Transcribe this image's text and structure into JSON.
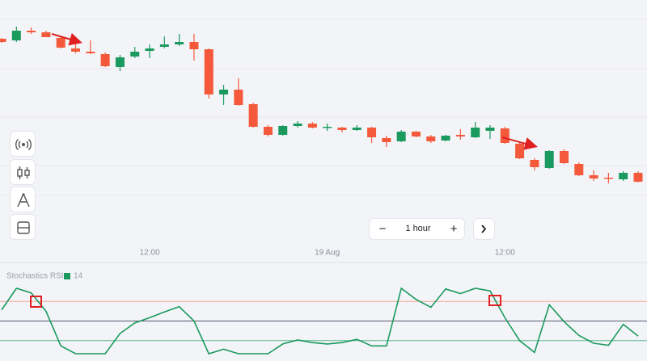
{
  "chart_data": [
    {
      "type": "candlestick",
      "categories": [
        null,
        null,
        null,
        null,
        null,
        null,
        null,
        null,
        null,
        null,
        "12:00",
        null,
        null,
        null,
        null,
        null,
        null,
        null,
        null,
        null,
        null,
        null,
        "19 Aug",
        null,
        null,
        null,
        null,
        null,
        null,
        null,
        null,
        null,
        null,
        null,
        "12:00",
        null,
        null,
        null,
        null,
        null,
        null,
        null,
        null,
        null
      ],
      "open": [
        282,
        280,
        292,
        290,
        283,
        270,
        266,
        263,
        247,
        260,
        267,
        272,
        275,
        278,
        269,
        213,
        219,
        201,
        173,
        163,
        174,
        177,
        172,
        172,
        169,
        172,
        159,
        155,
        167,
        161,
        156,
        163,
        160,
        168,
        171,
        152,
        132,
        122,
        143,
        127,
        113,
        110,
        108,
        116
      ],
      "high": [
        283,
        297,
        296,
        292,
        285,
        277,
        280,
        265,
        262,
        272,
        275,
        285,
        288,
        288,
        270,
        225,
        233,
        203,
        175,
        175,
        180,
        179,
        177,
        173,
        175,
        173,
        162,
        169,
        168,
        163,
        163,
        170,
        179,
        175,
        173,
        154,
        134,
        144,
        145,
        129,
        119,
        116,
        118,
        118
      ],
      "low": [
        277,
        278,
        288,
        284,
        270,
        264,
        263,
        247,
        242,
        258,
        258,
        270,
        273,
        255,
        208,
        200,
        199,
        172,
        161,
        162,
        172,
        171,
        168,
        166,
        168,
        153,
        148,
        154,
        160,
        153,
        155,
        157,
        159,
        158,
        152,
        133,
        119,
        121,
        127,
        112,
        106,
        103,
        106,
        104
      ],
      "close": [
        278,
        292,
        290,
        284,
        271,
        266,
        264,
        248,
        259,
        266,
        270,
        275,
        278,
        269,
        213,
        219,
        200,
        173,
        163,
        174,
        177,
        172,
        173,
        169,
        172,
        160,
        154,
        167,
        161,
        155,
        162,
        161,
        172,
        172,
        153,
        134,
        123,
        143,
        128,
        113,
        109,
        109,
        116,
        105
      ],
      "up_color": "#1a9a5e",
      "down_color": "#f4593b",
      "ylim": [
        0,
        330
      ]
    },
    {
      "type": "line",
      "title": "Stochastics RSI",
      "series": [
        {
          "name": "14",
          "color": "#1a9a5e",
          "values": [
            67,
            100,
            93,
            65,
            12,
            0,
            0,
            0,
            31,
            47,
            55,
            64,
            72,
            50,
            0,
            7,
            0,
            0,
            0,
            15,
            21,
            17,
            15,
            17,
            22,
            12,
            12,
            100,
            83,
            71,
            99,
            92,
            100,
            96,
            55,
            20,
            2,
            75,
            49,
            28,
            16,
            13,
            45,
            27
          ]
        }
      ],
      "levels": [
        {
          "value": 80,
          "color": "#f2a39a"
        },
        {
          "value": 50,
          "color": "#555b6e"
        },
        {
          "value": 20,
          "color": "#5cb88a"
        }
      ],
      "ylim": [
        0,
        100
      ]
    }
  ],
  "ui": {
    "interval": "1 hour",
    "decrement": "−",
    "increment": "+"
  }
}
